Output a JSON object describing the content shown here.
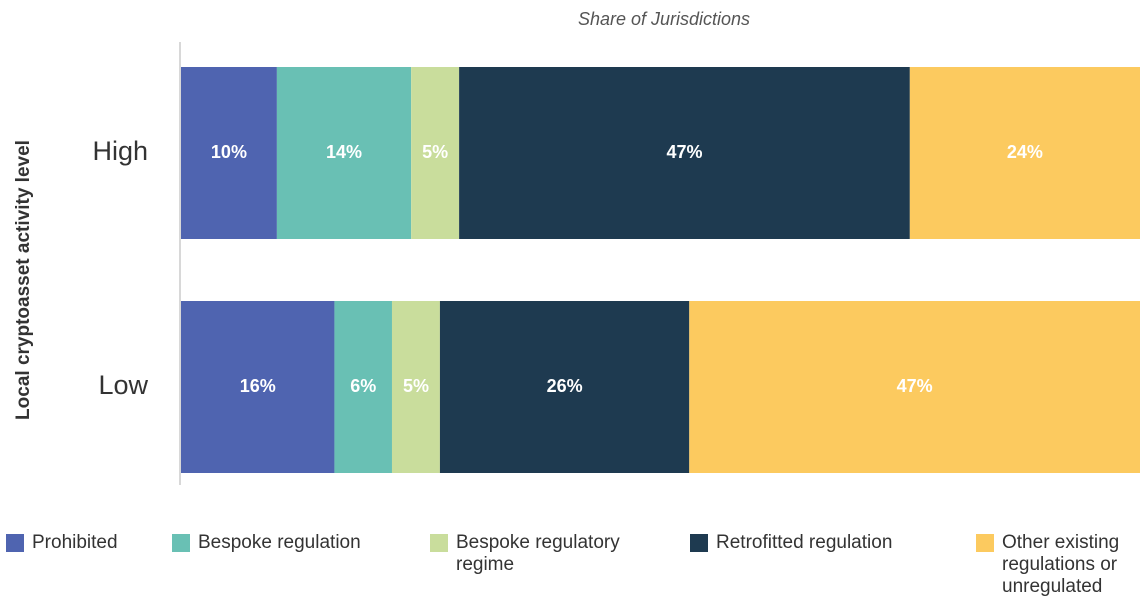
{
  "chart_data": {
    "type": "stacked-bar-horizontal",
    "xlabel": "Share of Jurisdictions",
    "ylabel": "Local cryptoasset activity level",
    "categories": [
      "High",
      "Low"
    ],
    "xlim": [
      0,
      100
    ],
    "series": [
      {
        "name": "Prohibited",
        "color": "#4f64b0",
        "values": [
          10,
          16
        ],
        "value_labels": [
          "10%",
          "16%"
        ]
      },
      {
        "name": "Bespoke regulation",
        "color": "#69c0b4",
        "values": [
          14,
          6
        ],
        "value_labels": [
          "14%",
          "6%"
        ]
      },
      {
        "name": "Bespoke regulatory regime",
        "color": "#c9dd9c",
        "values": [
          5,
          5
        ],
        "value_labels": [
          "5%",
          "5%"
        ]
      },
      {
        "name": "Retrofitted regulation",
        "color": "#1e3a50",
        "values": [
          47,
          26
        ],
        "value_labels": [
          "47%",
          "26%"
        ]
      },
      {
        "name": "Other existing regulations or unregulated",
        "color": "#fcca5f",
        "values": [
          24,
          47
        ],
        "value_labels": [
          "24%",
          "47%"
        ]
      }
    ]
  }
}
